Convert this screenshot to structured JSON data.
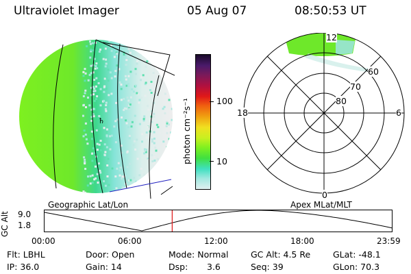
{
  "header": {
    "title": "Ultraviolet Imager",
    "date": "05 Aug 07",
    "time": "08:50:53 UT"
  },
  "geo_panel": {
    "label": "Geographic Lat/Lon"
  },
  "colorbar": {
    "unit_label": "photon cm⁻²s⁻¹",
    "ticks": [
      "100",
      "10"
    ],
    "colors": [
      "#1a0a2a",
      "#4a1a6a",
      "#7a1a5a",
      "#b01040",
      "#e01818",
      "#f06010",
      "#f0a010",
      "#f0e020",
      "#c8f020",
      "#80f020",
      "#40e040",
      "#40e0c0",
      "#a0e8e0",
      "#e0f0f0"
    ]
  },
  "polar_panel": {
    "label": "Apex MLat/MLT",
    "mlt_labels": {
      "top": "12",
      "left": "18",
      "right": "6",
      "bottom": "0"
    },
    "lat_labels": [
      "60",
      "70",
      "80"
    ]
  },
  "timeline": {
    "ylabel": "GC Alt",
    "yticks": [
      "9.0",
      "1.8"
    ],
    "xticks": [
      "00:00",
      "06:00",
      "12:00",
      "18:00",
      "23:59"
    ],
    "current_time_fraction": 0.367
  },
  "info": {
    "flt": "Flt: LBHL",
    "ip": "IP: 36.0",
    "door": "Door: Open",
    "gain": "Gain: 14",
    "mode": "Mode: Normal",
    "dsp_label": "Dsp:",
    "dsp_value": "3.6",
    "gcalt": "GC Alt: 4.5 Re",
    "seq": "Seq: 39",
    "glat": "GLat: -48.1",
    "glon": "GLon: 70.3"
  }
}
